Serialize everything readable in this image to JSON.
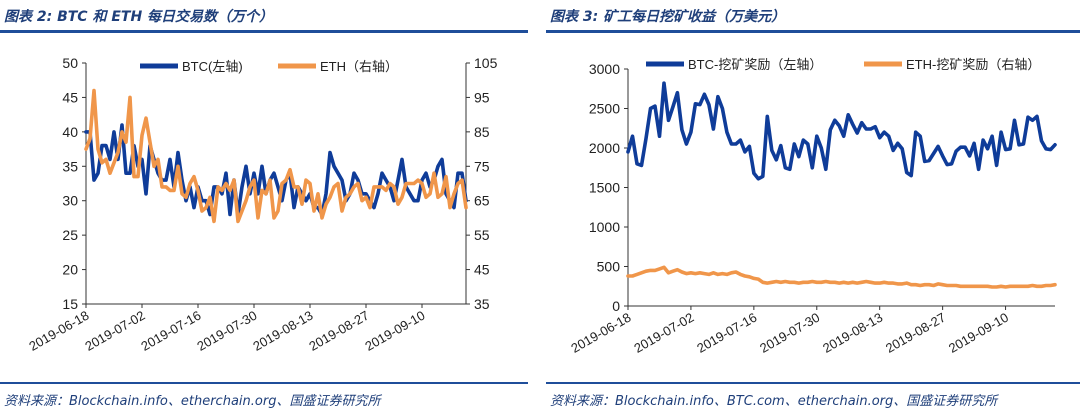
{
  "colors": {
    "btc": "#0f3c99",
    "eth": "#f0964a",
    "title": "#1f3f7a",
    "rule": "#1f4e9a"
  },
  "left": {
    "title": "图表 2:  BTC 和 ETH 每日交易数（万个）",
    "source": "资料来源：Blockchain.info、etherchain.org、国盛证券研究所"
  },
  "right": {
    "title": "图表 3:  矿工每日挖矿收益（万美元）",
    "source": "资料来源：Blockchain.info、BTC.com、etherchain.org、国盛证券研究所"
  },
  "chart_data": [
    {
      "type": "line",
      "x_labels": [
        "2019-06-18",
        "2019-07-02",
        "2019-07-16",
        "2019-07-30",
        "2019-08-13",
        "2019-08-27",
        "2019-09-10"
      ],
      "x_tick_days": [
        0,
        14,
        28,
        42,
        56,
        70,
        84
      ],
      "ylim_left": [
        15,
        50
      ],
      "yticks_left": [
        15,
        20,
        25,
        30,
        35,
        40,
        45,
        50
      ],
      "ylim_right": [
        35,
        105
      ],
      "yticks_right": [
        35,
        45,
        55,
        65,
        75,
        85,
        95,
        105
      ],
      "legend": "top",
      "series": [
        {
          "name": "BTC(左轴)",
          "axis": "left",
          "values": [
            40,
            40,
            33,
            34,
            38,
            38,
            36,
            40,
            36,
            41,
            34,
            34,
            38,
            35,
            36,
            31,
            38,
            36,
            34,
            33,
            33,
            36,
            32,
            37,
            33,
            30,
            32,
            29,
            32,
            30,
            30,
            28,
            32,
            32,
            31,
            34,
            28,
            33,
            28,
            32,
            35,
            31,
            34,
            31,
            35,
            31,
            33,
            34,
            32,
            30,
            33,
            34,
            29,
            32,
            31,
            30,
            31,
            29,
            29,
            28,
            31,
            37,
            35,
            34,
            33,
            30,
            31,
            34,
            33,
            31,
            31,
            30,
            29,
            31,
            34,
            33,
            32,
            30,
            33,
            36,
            32,
            31,
            30,
            30,
            33,
            34,
            32,
            33,
            35,
            36,
            31,
            30,
            29,
            34,
            34,
            30
          ]
        },
        {
          "name": "ETH（右轴）",
          "axis": "right",
          "values": [
            80,
            83,
            97,
            80,
            76,
            77,
            73,
            76,
            79,
            85,
            82,
            95,
            72,
            72,
            84,
            89,
            82,
            75,
            77,
            69,
            69,
            68,
            68,
            75,
            67,
            66,
            70,
            72,
            68,
            62,
            63,
            66,
            59,
            69,
            68,
            70,
            68,
            71,
            59,
            62,
            65,
            69,
            71,
            60,
            68,
            67,
            71,
            60,
            62,
            70,
            71,
            74,
            69,
            69,
            64,
            71,
            70,
            62,
            67,
            60,
            64,
            66,
            69,
            70,
            62,
            66,
            67,
            69,
            70,
            65,
            66,
            63,
            69,
            69,
            69,
            68,
            70,
            69,
            64,
            66,
            70,
            70,
            70,
            71,
            70,
            66,
            67,
            73,
            66,
            67,
            72,
            63,
            67,
            70,
            71,
            63
          ]
        }
      ]
    },
    {
      "type": "line",
      "x_labels": [
        "2019-06-18",
        "2019-07-02",
        "2019-07-16",
        "2019-07-30",
        "2019-08-13",
        "2019-08-27",
        "2019-09-10"
      ],
      "x_tick_days": [
        0,
        14,
        28,
        42,
        56,
        70,
        84
      ],
      "ylim": [
        0,
        3000
      ],
      "yticks": [
        0,
        500,
        1000,
        1500,
        2000,
        2500,
        3000
      ],
      "legend": "top",
      "series": [
        {
          "name": "BTC-挖矿奖励（左轴）",
          "axis": "left",
          "values": [
            1950,
            2150,
            1800,
            1780,
            2120,
            2500,
            2530,
            2150,
            2820,
            2350,
            2520,
            2700,
            2230,
            2050,
            2200,
            2560,
            2550,
            2680,
            2550,
            2240,
            2650,
            2500,
            2200,
            2050,
            2050,
            2100,
            1950,
            2020,
            1680,
            1610,
            1640,
            2400,
            1970,
            1850,
            2030,
            1750,
            1730,
            2050,
            1890,
            2100,
            2050,
            1750,
            2150,
            2000,
            1730,
            2230,
            2350,
            2280,
            2150,
            2420,
            2300,
            2190,
            2320,
            2240,
            2240,
            2270,
            2130,
            2200,
            2150,
            1970,
            2060,
            1990,
            1690,
            1650,
            2200,
            2150,
            1830,
            1840,
            1930,
            2020,
            1900,
            1790,
            1800,
            1960,
            2010,
            2010,
            1900,
            2060,
            1730,
            2100,
            1990,
            2150,
            1780,
            2200,
            1980,
            1990,
            2350,
            2040,
            2050,
            2390,
            2350,
            2400,
            2090,
            1990,
            1980,
            2040
          ]
        },
        {
          "name": "ETH-挖矿奖励（右轴）",
          "axis": "left",
          "values": [
            380,
            380,
            400,
            420,
            440,
            450,
            450,
            470,
            490,
            420,
            440,
            460,
            430,
            410,
            420,
            410,
            420,
            410,
            400,
            420,
            400,
            410,
            400,
            420,
            430,
            400,
            380,
            370,
            350,
            340,
            300,
            290,
            300,
            310,
            300,
            310,
            300,
            300,
            290,
            300,
            300,
            310,
            300,
            300,
            310,
            300,
            300,
            290,
            300,
            290,
            300,
            290,
            300,
            310,
            300,
            290,
            290,
            300,
            290,
            290,
            280,
            280,
            290,
            270,
            270,
            260,
            270,
            270,
            260,
            280,
            270,
            260,
            260,
            260,
            250,
            250,
            250,
            250,
            250,
            250,
            250,
            240,
            240,
            250,
            240,
            250,
            250,
            250,
            250,
            250,
            260,
            250,
            250,
            260,
            260,
            270
          ]
        }
      ]
    }
  ]
}
